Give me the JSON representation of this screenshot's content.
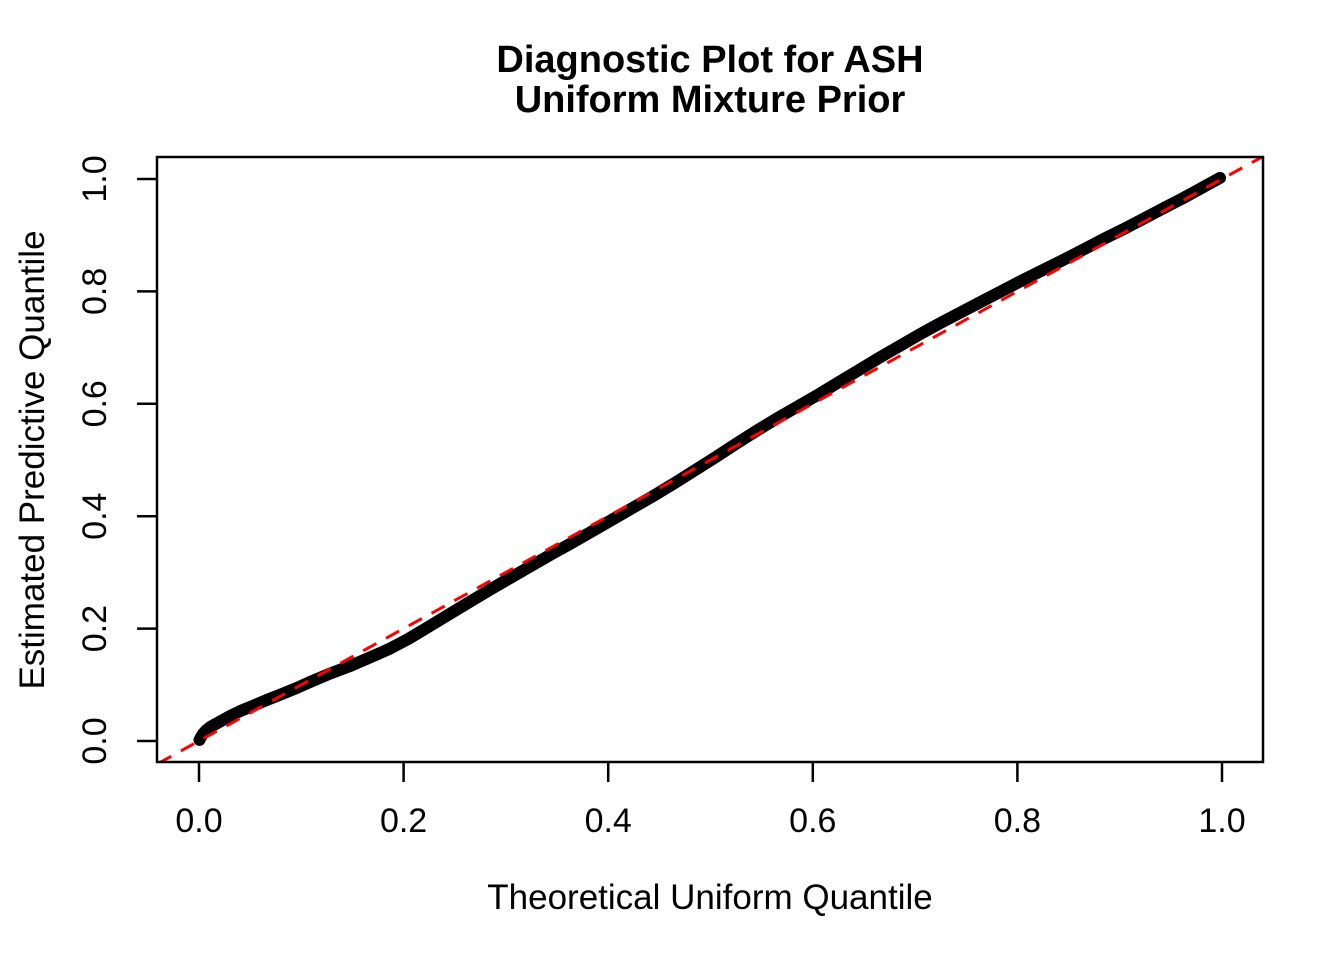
{
  "title": {
    "line1": "Diagnostic Plot for ASH",
    "line2": "Uniform Mixture Prior"
  },
  "axes": {
    "x_label": "Theoretical Uniform Quantile",
    "y_label": "Estimated Predictive Quantile",
    "x_tick_labels": [
      "0.0",
      "0.2",
      "0.4",
      "0.6",
      "0.8",
      "1.0"
    ],
    "x_tick_values": [
      0.0,
      0.2,
      0.4,
      0.6,
      0.8,
      1.0
    ],
    "y_tick_labels": [
      "0.0",
      "0.2",
      "0.4",
      "0.6",
      "0.8",
      "1.0"
    ],
    "y_tick_values": [
      0.0,
      0.2,
      0.4,
      0.6,
      0.8,
      1.0
    ]
  },
  "colors": {
    "background": "#FFFFFF",
    "axis": "#000000",
    "curve": "#000000",
    "reference_line": "#FF0000"
  },
  "chart_data": {
    "type": "line",
    "title": "Diagnostic Plot for ASH\nUniform Mixture Prior",
    "xlabel": "Theoretical Uniform Quantile",
    "ylabel": "Estimated Predictive Quantile",
    "xlim": [
      -0.04,
      1.04
    ],
    "ylim": [
      -0.04,
      1.04
    ],
    "grid": false,
    "legend": false,
    "series": [
      {
        "name": "estimated-predictive-quantile-curve",
        "style": "thick-black-point-band",
        "points": [
          [
            0.0005,
            0.002
          ],
          [
            0.002,
            0.007
          ],
          [
            0.004,
            0.013
          ],
          [
            0.007,
            0.019
          ],
          [
            0.011,
            0.025
          ],
          [
            0.016,
            0.03
          ],
          [
            0.022,
            0.036
          ],
          [
            0.03,
            0.044
          ],
          [
            0.04,
            0.053
          ],
          [
            0.052,
            0.062
          ],
          [
            0.065,
            0.072
          ],
          [
            0.08,
            0.083
          ],
          [
            0.095,
            0.094
          ],
          [
            0.11,
            0.106
          ],
          [
            0.128,
            0.12
          ],
          [
            0.147,
            0.133
          ],
          [
            0.165,
            0.147
          ],
          [
            0.185,
            0.163
          ],
          [
            0.205,
            0.182
          ],
          [
            0.225,
            0.204
          ],
          [
            0.245,
            0.226
          ],
          [
            0.265,
            0.248
          ],
          [
            0.285,
            0.27
          ],
          [
            0.305,
            0.291
          ],
          [
            0.325,
            0.312
          ],
          [
            0.345,
            0.333
          ],
          [
            0.365,
            0.353
          ],
          [
            0.385,
            0.374
          ],
          [
            0.405,
            0.395
          ],
          [
            0.425,
            0.416
          ],
          [
            0.445,
            0.437
          ],
          [
            0.465,
            0.459
          ],
          [
            0.485,
            0.482
          ],
          [
            0.505,
            0.505
          ],
          [
            0.525,
            0.529
          ],
          [
            0.545,
            0.552
          ],
          [
            0.565,
            0.574
          ],
          [
            0.585,
            0.595
          ],
          [
            0.605,
            0.616
          ],
          [
            0.625,
            0.638
          ],
          [
            0.645,
            0.66
          ],
          [
            0.665,
            0.682
          ],
          [
            0.685,
            0.703
          ],
          [
            0.705,
            0.724
          ],
          [
            0.725,
            0.744
          ],
          [
            0.745,
            0.763
          ],
          [
            0.765,
            0.782
          ],
          [
            0.785,
            0.801
          ],
          [
            0.805,
            0.82
          ],
          [
            0.825,
            0.838
          ],
          [
            0.845,
            0.856
          ],
          [
            0.865,
            0.875
          ],
          [
            0.885,
            0.894
          ],
          [
            0.905,
            0.912
          ],
          [
            0.925,
            0.931
          ],
          [
            0.945,
            0.95
          ],
          [
            0.96,
            0.964
          ],
          [
            0.972,
            0.976
          ],
          [
            0.982,
            0.986
          ],
          [
            0.99,
            0.994
          ],
          [
            0.995,
            0.999
          ],
          [
            0.998,
            1.002
          ]
        ]
      },
      {
        "name": "reference-diagonal",
        "style": "red-dashed",
        "points": [
          [
            -0.04,
            -0.04
          ],
          [
            1.04,
            1.04
          ]
        ]
      }
    ]
  }
}
